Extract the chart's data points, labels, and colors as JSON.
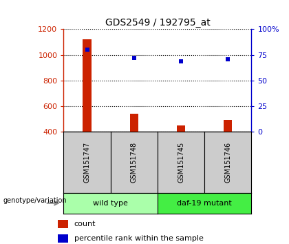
{
  "title": "GDS2549 / 192795_at",
  "samples": [
    "GSM151747",
    "GSM151748",
    "GSM151745",
    "GSM151746"
  ],
  "count_values": [
    1120,
    540,
    450,
    490
  ],
  "percentile_values": [
    80,
    72,
    69,
    71
  ],
  "ylim_left": [
    400,
    1200
  ],
  "ylim_right": [
    0,
    100
  ],
  "yticks_left": [
    400,
    600,
    800,
    1000,
    1200
  ],
  "yticks_right": [
    0,
    25,
    50,
    75,
    100
  ],
  "bar_color": "#cc2200",
  "dot_color": "#0000cc",
  "groups": [
    {
      "label": "wild type",
      "samples": [
        0,
        1
      ],
      "color": "#aaffaa"
    },
    {
      "label": "daf-19 mutant",
      "samples": [
        2,
        3
      ],
      "color": "#44ee44"
    }
  ],
  "sample_box_color": "#cccccc",
  "title_fontsize": 10,
  "axis_label_color_left": "#cc2200",
  "axis_label_color_right": "#0000cc",
  "genotype_label": "genotype/variation",
  "legend_count_label": "count",
  "legend_pct_label": "percentile rank within the sample",
  "grid_style": "dotted",
  "bar_width": 0.18,
  "dot_size": 25
}
